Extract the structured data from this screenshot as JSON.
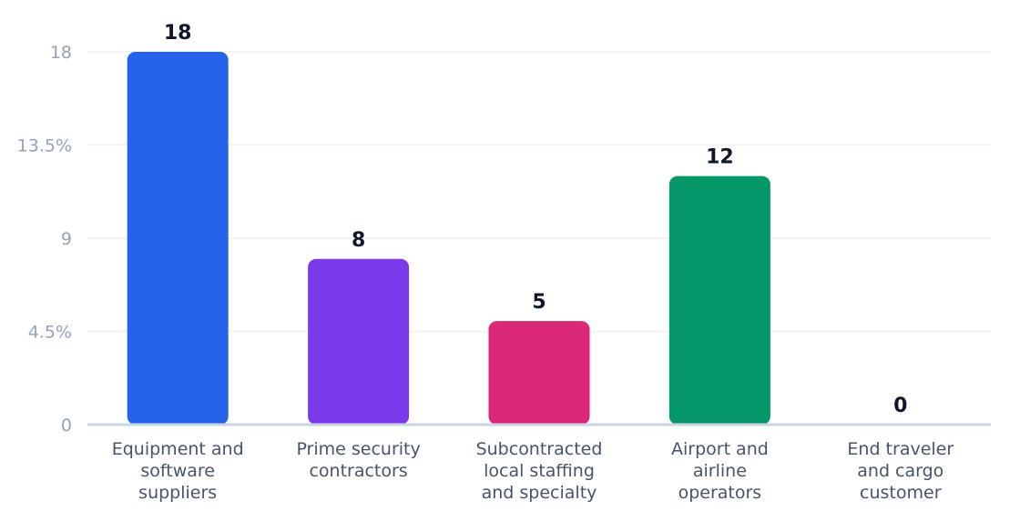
{
  "chart_data": {
    "type": "bar",
    "categories": [
      [
        "Equipment and",
        "software",
        "suppliers"
      ],
      [
        "Prime security",
        "contractors"
      ],
      [
        "Subcontracted",
        "local staffing",
        "and specialty"
      ],
      [
        "Airport and",
        "airline",
        "operators"
      ],
      [
        "End traveler",
        "and cargo",
        "customer"
      ]
    ],
    "values": [
      18,
      8,
      5,
      12,
      0
    ],
    "colors": [
      "#2563eb",
      "#7c3aed",
      "#db2777",
      "#059669",
      "#d97706"
    ],
    "y_ticks": [
      "0",
      "4.5%",
      "9",
      "13.5%",
      "18"
    ],
    "ylim": [
      0,
      18
    ],
    "grid": true,
    "legend": "none"
  }
}
